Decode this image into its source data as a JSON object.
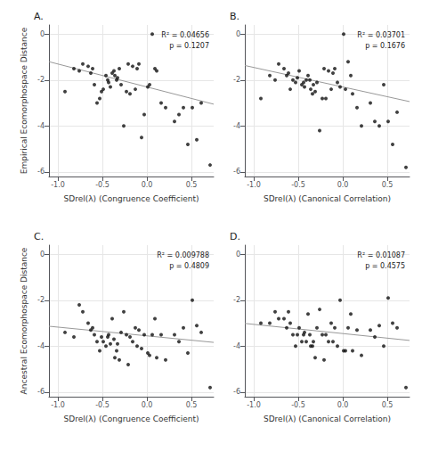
{
  "chart_data": [
    {
      "type": "scatter",
      "title": "A.",
      "xlabel": "SDrel(λ) (Congruence Coefficient)",
      "ylabel": "Empirical Ecomorphospace Distance",
      "annotations": [
        "R² = 0.04656",
        "p = 0.1207"
      ],
      "xlim": [
        -1.1,
        0.75
      ],
      "ylim": [
        -6.2,
        0.4
      ],
      "xticks": [
        {
          "value": -1.0,
          "label": "-1.0"
        },
        {
          "value": -0.5,
          "label": "-0.5"
        },
        {
          "value": 0.0,
          "label": "0.0"
        },
        {
          "value": 0.5,
          "label": "0.5"
        }
      ],
      "yticks": [
        -6,
        -4,
        -2,
        0
      ],
      "grid": true,
      "series": [
        {
          "type": "scatter",
          "color": "#111111",
          "x": [
            -0.92,
            -0.82,
            -0.76,
            -0.72,
            -0.66,
            -0.63,
            -0.61,
            -0.59,
            -0.56,
            -0.53,
            -0.51,
            -0.49,
            -0.46,
            -0.44,
            -0.43,
            -0.41,
            -0.39,
            -0.37,
            -0.36,
            -0.34,
            -0.33,
            -0.31,
            -0.29,
            -0.26,
            -0.23,
            -0.21,
            -0.19,
            -0.16,
            -0.13,
            -0.11,
            -0.09,
            -0.06,
            -0.03,
            0.01,
            0.03,
            0.06,
            0.09,
            0.11,
            0.16,
            0.21,
            0.31,
            0.36,
            0.41,
            0.46,
            0.51,
            0.56,
            0.61,
            0.71
          ],
          "values": [
            -2.5,
            -1.5,
            -1.6,
            -1.3,
            -1.4,
            -1.7,
            -1.5,
            -2.2,
            -3.0,
            -2.8,
            -2.5,
            -2.4,
            -1.8,
            -2.0,
            -2.1,
            -2.3,
            -1.7,
            -1.6,
            -1.8,
            -2.0,
            -1.9,
            -1.5,
            -2.2,
            -4.0,
            -2.5,
            -1.3,
            -2.6,
            -1.4,
            -2.4,
            -1.5,
            -1.3,
            -4.5,
            -3.5,
            -2.3,
            -2.2,
            0.0,
            -1.5,
            -1.6,
            -3.0,
            -3.2,
            -3.8,
            -3.5,
            -3.2,
            -4.8,
            -3.2,
            -4.6,
            -3.0,
            -5.7
          ]
        },
        {
          "type": "line",
          "color": "#999999",
          "x": [
            -1.1,
            0.75
          ],
          "values": [
            -1.2,
            -3.05
          ]
        }
      ]
    },
    {
      "type": "scatter",
      "title": "B.",
      "xlabel": "SDrel(λ) (Canonical Correlation)",
      "annotations": [
        "R² = 0.03701",
        "p = 0.1676"
      ],
      "xlim": [
        -1.1,
        0.75
      ],
      "ylim": [
        -6.2,
        0.4
      ],
      "xticks": [
        {
          "value": -1.0,
          "label": "-1.0"
        },
        {
          "value": -0.5,
          "label": "-0.5"
        },
        {
          "value": 0.0,
          "label": "0.0"
        },
        {
          "value": 0.5,
          "label": "0.5"
        }
      ],
      "yticks": [
        -6,
        -4,
        -2,
        0
      ],
      "grid": true,
      "series": [
        {
          "type": "scatter",
          "color": "#111111",
          "x": [
            -0.92,
            -0.82,
            -0.76,
            -0.72,
            -0.66,
            -0.63,
            -0.61,
            -0.59,
            -0.56,
            -0.53,
            -0.51,
            -0.49,
            -0.46,
            -0.44,
            -0.43,
            -0.41,
            -0.39,
            -0.37,
            -0.36,
            -0.34,
            -0.33,
            -0.31,
            -0.29,
            -0.26,
            -0.23,
            -0.21,
            -0.19,
            -0.16,
            -0.13,
            -0.11,
            -0.09,
            -0.06,
            -0.03,
            0.01,
            0.03,
            0.06,
            0.09,
            0.11,
            0.16,
            0.21,
            0.31,
            0.36,
            0.41,
            0.46,
            0.51,
            0.56,
            0.61,
            0.71
          ],
          "values": [
            -2.8,
            -1.8,
            -2.0,
            -1.3,
            -1.5,
            -1.8,
            -1.7,
            -2.4,
            -2.0,
            -2.1,
            -1.9,
            -1.6,
            -2.2,
            -2.1,
            -2.3,
            -2.0,
            -1.8,
            -2.0,
            -2.4,
            -2.6,
            -2.2,
            -2.5,
            -2.1,
            -4.2,
            -2.8,
            -1.5,
            -2.8,
            -1.6,
            -2.4,
            -1.7,
            -1.5,
            -2.1,
            -2.3,
            0.0,
            -2.4,
            -1.2,
            -1.8,
            -2.6,
            -3.2,
            -4.0,
            -3.0,
            -3.8,
            -4.0,
            -2.2,
            -3.8,
            -4.8,
            -3.4,
            -5.8
          ]
        },
        {
          "type": "line",
          "color": "#999999",
          "x": [
            -1.1,
            0.75
          ],
          "values": [
            -1.365,
            -2.9375
          ]
        }
      ]
    },
    {
      "type": "scatter",
      "title": "C.",
      "xlabel": "SDrel(λ) (Congruence Coefficient)",
      "ylabel": "Ancestral Ecomorphospace Distance",
      "annotations": [
        "R² = 0.009788",
        "p = 0.4809"
      ],
      "xlim": [
        -1.1,
        0.75
      ],
      "ylim": [
        -6.2,
        0.4
      ],
      "xticks": [
        {
          "value": -1.0,
          "label": "-1.0"
        },
        {
          "value": -0.5,
          "label": "-0.5"
        },
        {
          "value": 0.0,
          "label": "0.0"
        },
        {
          "value": 0.5,
          "label": "0.5"
        }
      ],
      "yticks": [
        -6,
        -4,
        -2,
        0
      ],
      "grid": true,
      "series": [
        {
          "type": "scatter",
          "color": "#111111",
          "x": [
            -0.92,
            -0.82,
            -0.76,
            -0.72,
            -0.66,
            -0.63,
            -0.61,
            -0.59,
            -0.56,
            -0.53,
            -0.51,
            -0.49,
            -0.46,
            -0.44,
            -0.43,
            -0.41,
            -0.39,
            -0.37,
            -0.36,
            -0.34,
            -0.33,
            -0.31,
            -0.29,
            -0.26,
            -0.23,
            -0.21,
            -0.19,
            -0.16,
            -0.13,
            -0.11,
            -0.09,
            -0.06,
            -0.03,
            0.01,
            0.03,
            0.06,
            0.09,
            0.11,
            0.16,
            0.21,
            0.31,
            0.36,
            0.41,
            0.46,
            0.51,
            0.56,
            0.61,
            0.71
          ],
          "values": [
            -3.4,
            -3.6,
            -2.2,
            -2.5,
            -3.0,
            -3.3,
            -3.2,
            -3.5,
            -3.8,
            -4.2,
            -3.6,
            -3.8,
            -4.0,
            -3.6,
            -3.5,
            -3.9,
            -2.8,
            -3.7,
            -4.5,
            -4.2,
            -3.9,
            -4.6,
            -3.4,
            -2.5,
            -3.5,
            -4.8,
            -3.6,
            -3.8,
            -3.2,
            -4.0,
            -3.3,
            -4.1,
            -3.5,
            -4.3,
            -4.4,
            -3.5,
            -2.8,
            -4.5,
            -3.5,
            -4.6,
            -3.5,
            -3.8,
            -3.2,
            -4.3,
            -2.0,
            -3.1,
            -3.4,
            -5.8
          ]
        },
        {
          "type": "line",
          "color": "#999999",
          "x": [
            -1.1,
            0.75
          ],
          "values": [
            -3.132,
            -3.835
          ]
        }
      ]
    },
    {
      "type": "scatter",
      "title": "D.",
      "xlabel": "SDrel(λ) (Canonical Correlation)",
      "annotations": [
        "R² = 0.01087",
        "p = 0.4575"
      ],
      "xlim": [
        -1.1,
        0.75
      ],
      "ylim": [
        -6.2,
        0.4
      ],
      "xticks": [
        {
          "value": -1.0,
          "label": "-1.0"
        },
        {
          "value": -0.5,
          "label": "-0.5"
        },
        {
          "value": 0.0,
          "label": "0.0"
        },
        {
          "value": 0.5,
          "label": "0.5"
        }
      ],
      "yticks": [
        -6,
        -4,
        -2,
        0
      ],
      "grid": true,
      "series": [
        {
          "type": "scatter",
          "color": "#111111",
          "x": [
            -0.92,
            -0.82,
            -0.76,
            -0.72,
            -0.66,
            -0.63,
            -0.61,
            -0.59,
            -0.56,
            -0.53,
            -0.51,
            -0.49,
            -0.46,
            -0.44,
            -0.43,
            -0.41,
            -0.39,
            -0.37,
            -0.36,
            -0.34,
            -0.33,
            -0.31,
            -0.29,
            -0.26,
            -0.23,
            -0.21,
            -0.19,
            -0.16,
            -0.13,
            -0.11,
            -0.09,
            -0.06,
            -0.03,
            0.01,
            0.03,
            0.06,
            0.09,
            0.11,
            0.16,
            0.21,
            0.31,
            0.36,
            0.41,
            0.46,
            0.51,
            0.56,
            0.61,
            0.71
          ],
          "values": [
            -3.0,
            -3.0,
            -2.5,
            -2.8,
            -2.8,
            -3.2,
            -2.5,
            -3.0,
            -3.5,
            -4.0,
            -3.5,
            -3.2,
            -3.8,
            -3.5,
            -3.4,
            -3.8,
            -2.6,
            -3.5,
            -4.0,
            -4.0,
            -3.8,
            -4.5,
            -3.2,
            -2.4,
            -3.5,
            -4.6,
            -3.5,
            -3.8,
            -3.0,
            -3.8,
            -3.2,
            -4.0,
            -2.0,
            -4.2,
            -4.2,
            -3.2,
            -2.6,
            -4.2,
            -3.3,
            -4.4,
            -3.3,
            -3.6,
            -3.1,
            -4.0,
            -1.9,
            -3.0,
            -3.2,
            -5.8
          ]
        },
        {
          "type": "line",
          "color": "#999999",
          "x": [
            -1.1,
            0.75
          ],
          "values": [
            -3.01,
            -3.75
          ]
        }
      ]
    }
  ]
}
